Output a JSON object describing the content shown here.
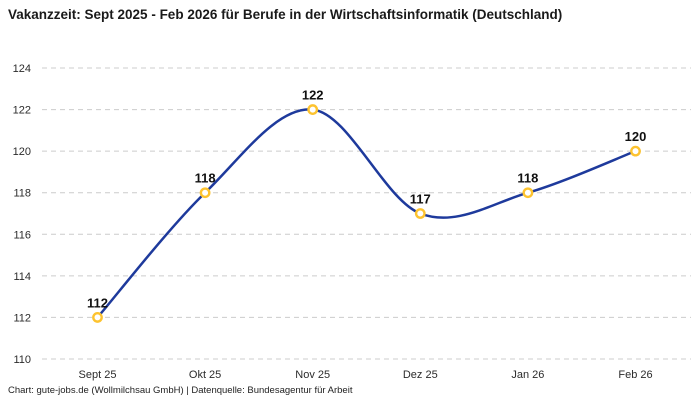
{
  "title": "Vakanzzeit: Sept 2025 - Feb 2026 für Berufe in der Wirtschaftsinformatik (Deutschland)",
  "footer": "Chart: gute-jobs.de (Wollmilchsau GmbH) | Datenquelle: Bundesagentur für Arbeit",
  "chart_data": {
    "type": "line",
    "categories": [
      "Sept 25",
      "Okt 25",
      "Nov 25",
      "Dez 25",
      "Jan 26",
      "Feb 26"
    ],
    "values": [
      112,
      118,
      122,
      117,
      118,
      120
    ],
    "data_labels": [
      "112",
      "118",
      "122",
      "117",
      "118",
      "120"
    ],
    "title": "Vakanzzeit: Sept 2025 - Feb 2026 für Berufe in der Wirtschaftsinformatik (Deutschland)",
    "xlabel": "",
    "ylabel": "",
    "ylim": [
      110,
      124
    ],
    "yticks": [
      110,
      112,
      114,
      116,
      118,
      120,
      122,
      124
    ],
    "grid": "horizontal-dashed",
    "legend": "none",
    "smooth": true,
    "colors": {
      "line": "#1e3a9c",
      "marker_stroke": "#fdc32f",
      "marker_fill": "#ffffff",
      "gridline": "#cccccc",
      "tick_text": "#2b2b2b",
      "label_text": "#111111",
      "background": "#ffffff"
    }
  }
}
